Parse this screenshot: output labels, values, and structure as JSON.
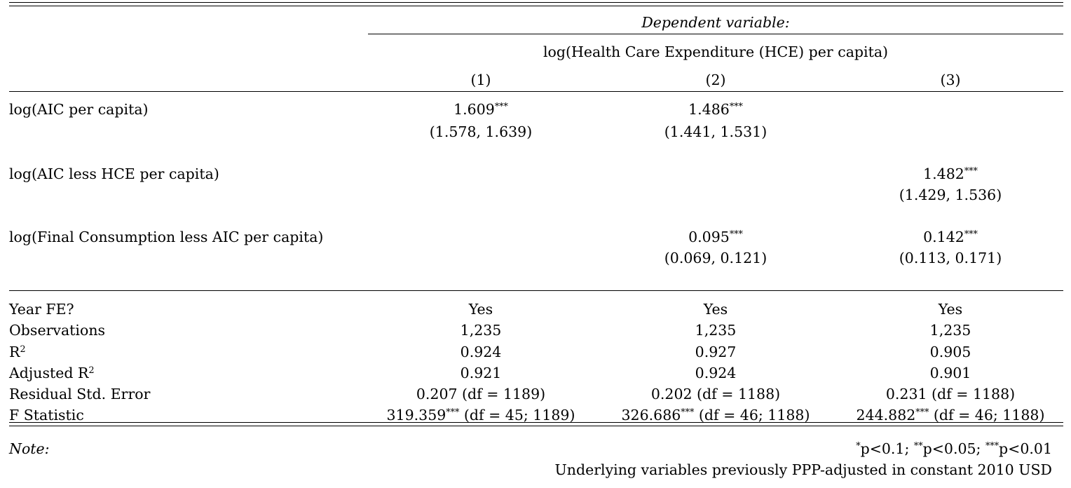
{
  "header": {
    "dependent_variable_label": "Dependent variable:",
    "dependent_variable": "log(Health Care Expenditure (HCE) per capita)",
    "columns": [
      "(1)",
      "(2)",
      "(3)"
    ]
  },
  "coefficients": [
    {
      "label": "log(AIC per capita)",
      "estimates": [
        {
          "value": "1.609",
          "stars": "***",
          "ci": "(1.578, 1.639)"
        },
        {
          "value": "1.486",
          "stars": "***",
          "ci": "(1.441, 1.531)"
        },
        {
          "value": "",
          "stars": "",
          "ci": ""
        }
      ]
    },
    {
      "label": "log(AIC less HCE per capita)",
      "estimates": [
        {
          "value": "",
          "stars": "",
          "ci": ""
        },
        {
          "value": "",
          "stars": "",
          "ci": ""
        },
        {
          "value": "1.482",
          "stars": "***",
          "ci": "(1.429, 1.536)"
        }
      ]
    },
    {
      "label": "log(Final Consumption less AIC per capita)",
      "estimates": [
        {
          "value": "",
          "stars": "",
          "ci": ""
        },
        {
          "value": "0.095",
          "stars": "***",
          "ci": "(0.069, 0.121)"
        },
        {
          "value": "0.142",
          "stars": "***",
          "ci": "(0.113, 0.171)"
        }
      ]
    }
  ],
  "statistics": {
    "year_fe": {
      "label": "Year FE?",
      "values": [
        "Yes",
        "Yes",
        "Yes"
      ]
    },
    "observations": {
      "label": "Observations",
      "values": [
        "1,235",
        "1,235",
        "1,235"
      ]
    },
    "r2": {
      "label": "R",
      "sup": "2",
      "values": [
        "0.924",
        "0.927",
        "0.905"
      ]
    },
    "adj_r2": {
      "label": "Adjusted R",
      "sup": "2",
      "values": [
        "0.921",
        "0.924",
        "0.901"
      ]
    },
    "rse": {
      "label": "Residual Std. Error",
      "values": [
        "0.207 (df = 1189)",
        "0.202 (df = 1188)",
        "0.231 (df = 1188)"
      ]
    },
    "fstat": {
      "label": "F Statistic",
      "values": [
        {
          "value": "319.359",
          "stars": "***",
          "df": " (df = 45; 1189)"
        },
        {
          "value": "326.686",
          "stars": "***",
          "df": " (df = 46; 1188)"
        },
        {
          "value": "244.882",
          "stars": "***",
          "df": " (df = 46; 1188)"
        }
      ]
    }
  },
  "notes": {
    "label": "Note:",
    "significance": [
      {
        "stars": "*",
        "text": "p<0.1; "
      },
      {
        "stars": "**",
        "text": "p<0.05; "
      },
      {
        "stars": "***",
        "text": "p<0.01"
      }
    ],
    "extra": "Underlying variables previously PPP-adjusted in constant 2010 USD"
  }
}
